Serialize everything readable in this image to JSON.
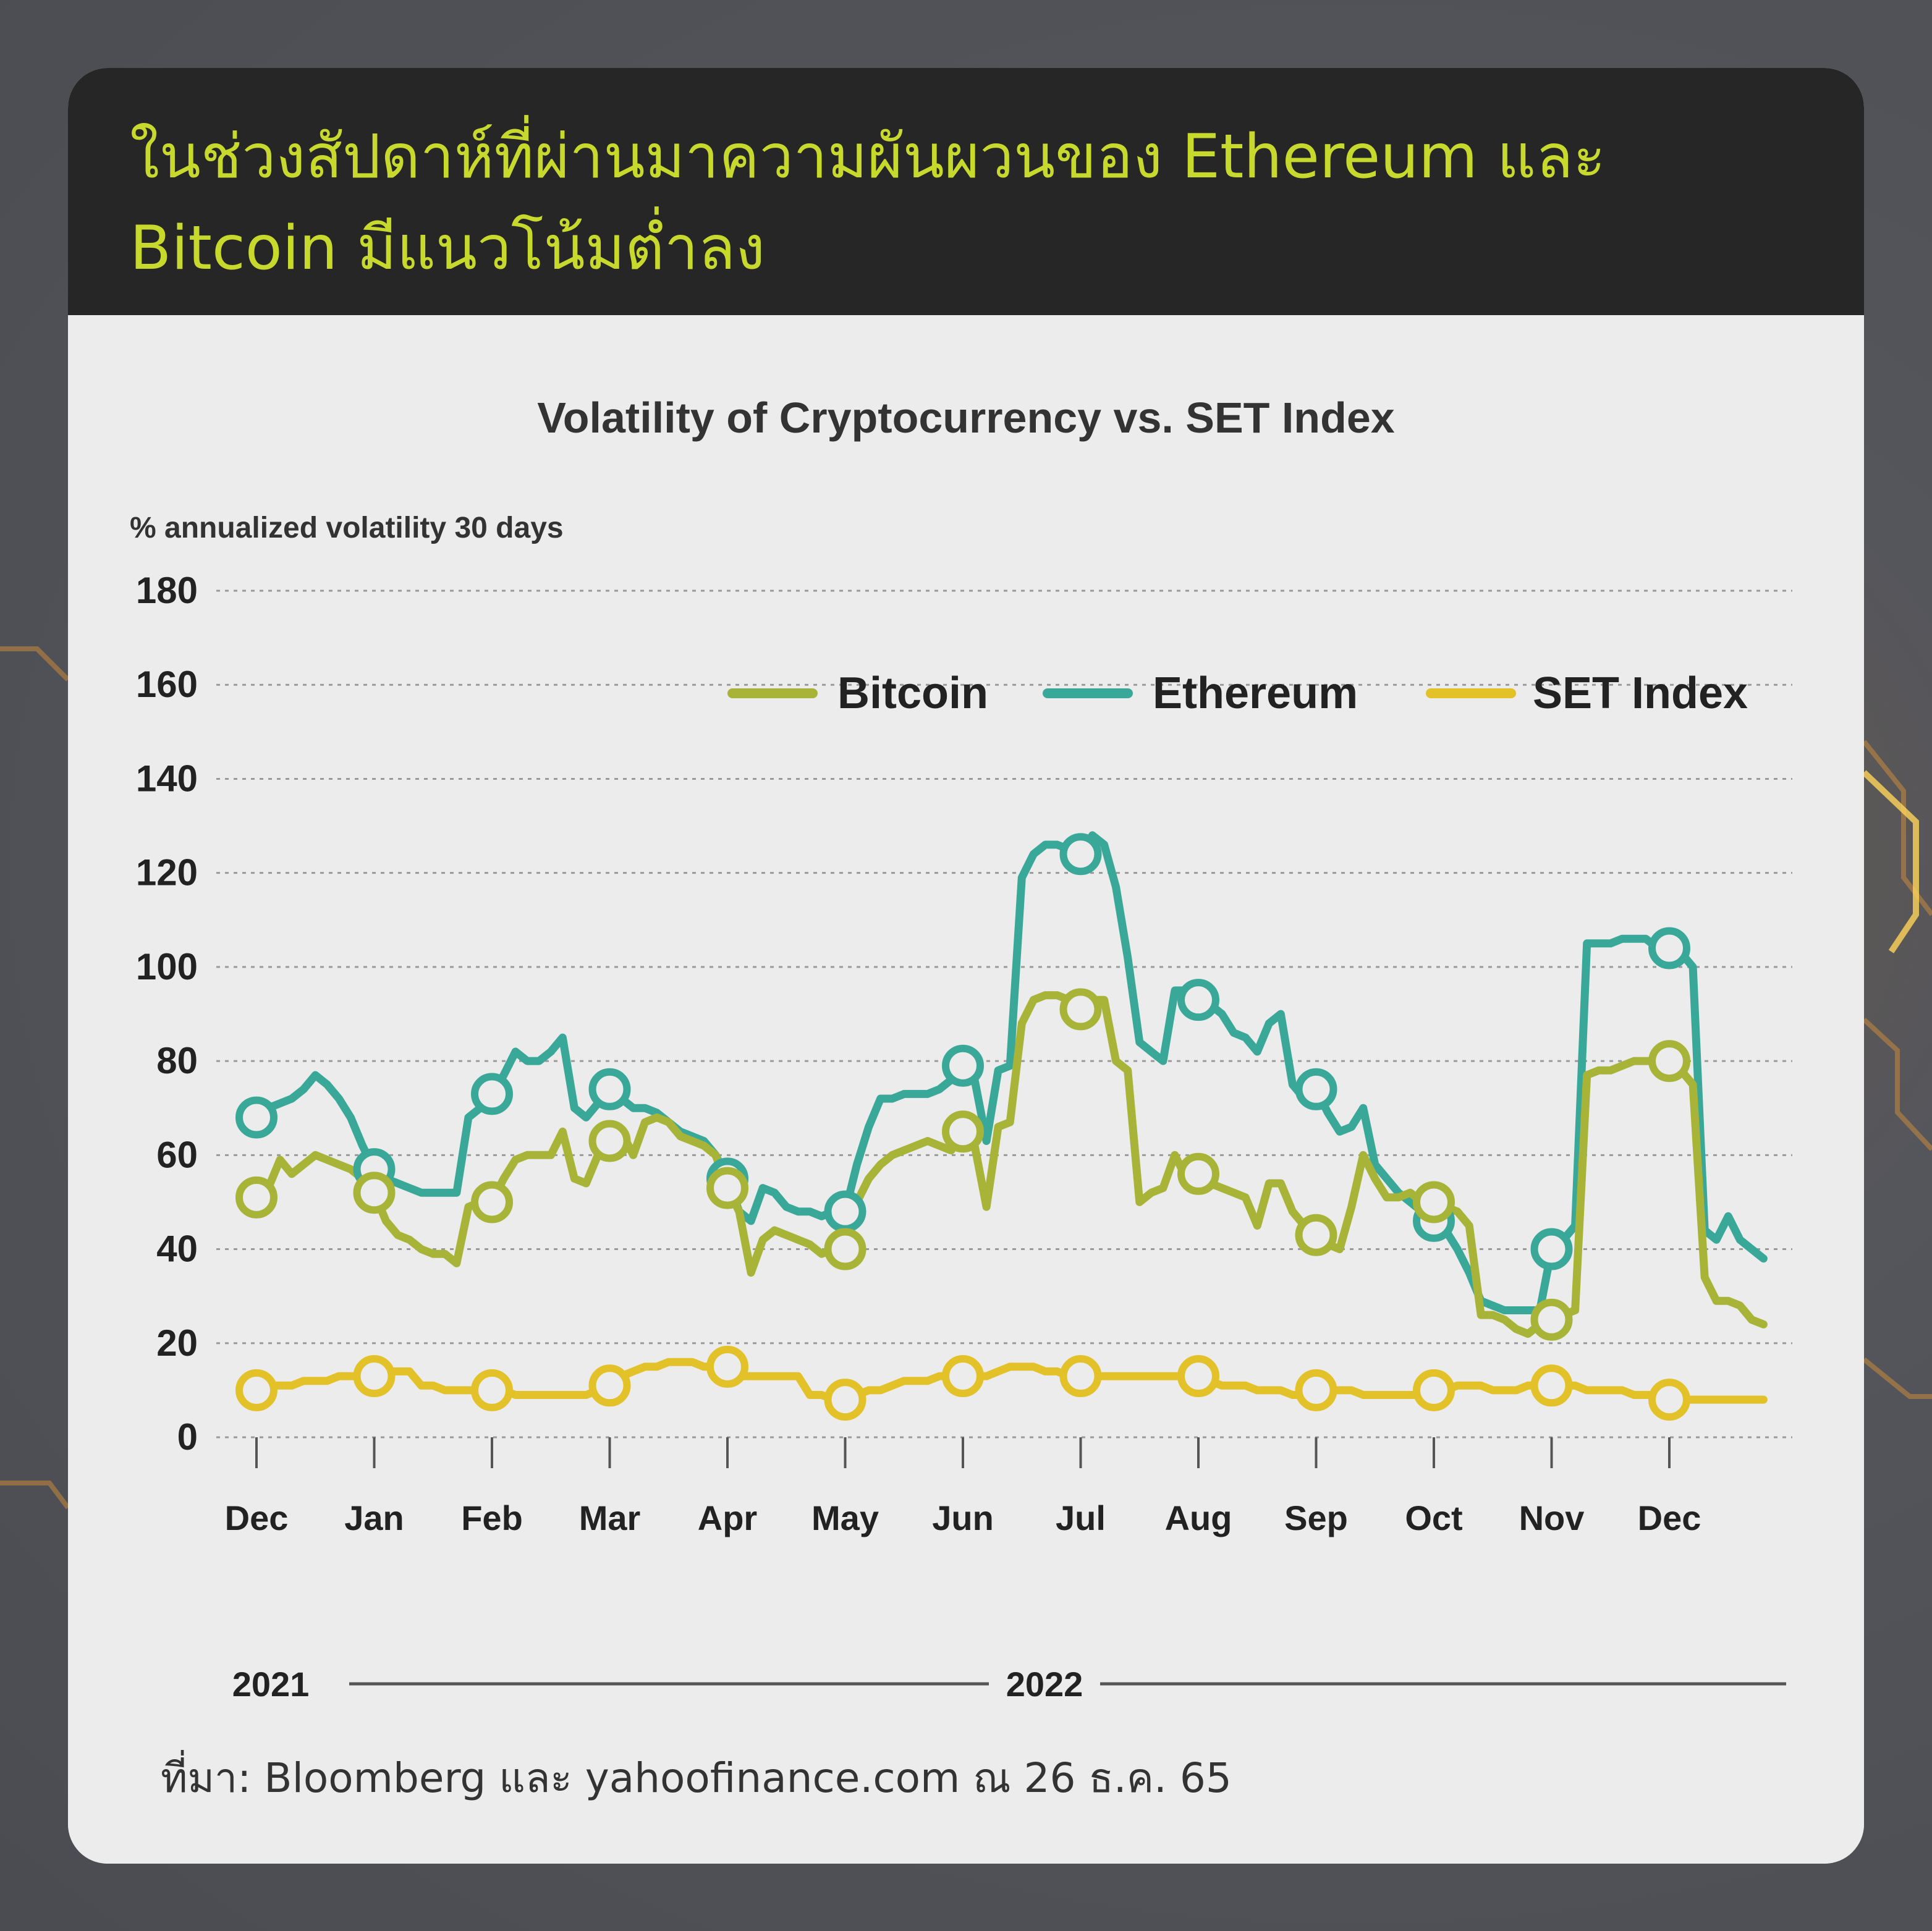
{
  "header": {
    "title": "ในช่วงสัปดาห์ที่ผ่านมาความผันผวนของ Ethereum และ Bitcoin มีแนวโน้มต่ำลง"
  },
  "source": "ที่มา: Bloomberg และ yahoofinance.com ณ 26 ธ.ค. 65",
  "colors": {
    "bitcoin": "#a8b437",
    "ethereum": "#3aa899",
    "set_index": "#e2c228",
    "title_text": "#c8d92e",
    "header_bg": "#262626"
  },
  "chart_data": {
    "type": "line",
    "title": "Volatility of Cryptocurrency  vs. SET Index",
    "ylabel": "% annualized volatility 30 days",
    "ylim": [
      0,
      180
    ],
    "yticks": [
      "180",
      "160",
      "140",
      "120",
      "100",
      "80",
      "60",
      "40",
      "20",
      "0"
    ],
    "x_tick_labels": [
      "Dec",
      "Jan",
      "Feb",
      "Mar",
      "Apr",
      "May",
      "Jun",
      "Jul",
      "Aug",
      "Sep",
      "Oct",
      "Nov",
      "Dec"
    ],
    "year_labels": [
      "2021",
      "2022"
    ],
    "legend": [
      "Bitcoin",
      "Ethereum",
      "SET Index"
    ],
    "legend_position": "top-right",
    "grid": "horizontal dotted",
    "x": [
      0,
      0.1,
      0.2,
      0.3,
      0.4,
      0.5,
      0.6,
      0.7,
      0.8,
      0.9,
      1.0,
      1.1,
      1.2,
      1.3,
      1.4,
      1.5,
      1.6,
      1.7,
      1.8,
      1.9,
      2.0,
      2.1,
      2.2,
      2.3,
      2.4,
      2.5,
      2.6,
      2.7,
      2.8,
      2.9,
      3.0,
      3.1,
      3.2,
      3.3,
      3.4,
      3.5,
      3.6,
      3.7,
      3.8,
      3.9,
      4.0,
      4.1,
      4.2,
      4.3,
      4.4,
      4.5,
      4.6,
      4.7,
      4.8,
      4.9,
      5.0,
      5.1,
      5.2,
      5.3,
      5.4,
      5.5,
      5.6,
      5.7,
      5.8,
      5.9,
      6.0,
      6.1,
      6.2,
      6.3,
      6.4,
      6.5,
      6.6,
      6.7,
      6.8,
      6.9,
      7.0,
      7.1,
      7.2,
      7.3,
      7.4,
      7.5,
      7.6,
      7.7,
      7.8,
      7.9,
      8.0,
      8.1,
      8.2,
      8.3,
      8.4,
      8.5,
      8.6,
      8.7,
      8.8,
      8.9,
      9.0,
      9.1,
      9.2,
      9.3,
      9.4,
      9.5,
      9.6,
      9.7,
      9.8,
      9.9,
      10.0,
      10.1,
      10.2,
      10.3,
      10.4,
      10.5,
      10.6,
      10.7,
      10.8,
      10.9,
      11.0,
      11.1,
      11.2,
      11.3,
      11.4,
      11.5,
      11.6,
      11.7,
      11.8,
      11.9,
      12.0,
      12.1,
      12.2,
      12.3,
      12.4,
      12.5,
      12.6,
      12.7,
      12.8
    ],
    "series": [
      {
        "name": "Bitcoin",
        "values": [
          51,
          53,
          59,
          56,
          58,
          60,
          59,
          58,
          57,
          55,
          52,
          46,
          43,
          42,
          40,
          39,
          39,
          37,
          49,
          50,
          50,
          55,
          59,
          60,
          60,
          60,
          65,
          55,
          54,
          60,
          63,
          65,
          60,
          67,
          68,
          67,
          64,
          63,
          62,
          60,
          53,
          48,
          35,
          42,
          44,
          43,
          42,
          41,
          39,
          40,
          40,
          50,
          55,
          58,
          60,
          61,
          62,
          63,
          62,
          61,
          65,
          62,
          49,
          66,
          67,
          88,
          93,
          94,
          94,
          93,
          91,
          93,
          93,
          80,
          78,
          50,
          52,
          53,
          60,
          55,
          56,
          54,
          53,
          52,
          51,
          45,
          54,
          54,
          48,
          45,
          43,
          41,
          40,
          49,
          60,
          55,
          51,
          51,
          52,
          50,
          50,
          49,
          48,
          45,
          26,
          26,
          25,
          23,
          22,
          24,
          25,
          26,
          27,
          77,
          78,
          78,
          79,
          80,
          80,
          80,
          80,
          78,
          75,
          34,
          29,
          29,
          28,
          25,
          24
        ],
        "marker_x": [
          0,
          1,
          2,
          3,
          4,
          5,
          6,
          7,
          8,
          9,
          10,
          11,
          12
        ]
      },
      {
        "name": "Ethereum",
        "values": [
          68,
          70,
          71,
          72,
          74,
          77,
          75,
          72,
          68,
          62,
          57,
          55,
          54,
          53,
          52,
          52,
          52,
          52,
          68,
          70,
          73,
          77,
          82,
          80,
          80,
          82,
          85,
          70,
          68,
          71,
          74,
          72,
          70,
          70,
          69,
          67,
          65,
          64,
          63,
          60,
          55,
          48,
          46,
          53,
          52,
          49,
          48,
          48,
          47,
          48,
          48,
          58,
          66,
          72,
          72,
          73,
          73,
          73,
          74,
          76,
          79,
          76,
          63,
          78,
          79,
          119,
          124,
          126,
          126,
          125,
          124,
          128,
          126,
          117,
          102,
          84,
          82,
          80,
          95,
          95,
          93,
          92,
          90,
          86,
          85,
          82,
          88,
          90,
          75,
          72,
          74,
          69,
          65,
          66,
          70,
          58,
          55,
          52,
          50,
          48,
          46,
          44,
          40,
          35,
          29,
          28,
          27,
          27,
          27,
          27,
          40,
          42,
          45,
          105,
          105,
          105,
          106,
          106,
          106,
          104,
          104,
          103,
          100,
          44,
          42,
          47,
          42,
          40,
          38
        ],
        "marker_x": [
          0,
          1,
          2,
          3,
          4,
          5,
          6,
          7,
          8,
          9,
          10,
          11,
          12
        ]
      },
      {
        "name": "SET Index",
        "values": [
          10,
          11,
          11,
          11,
          12,
          12,
          12,
          13,
          13,
          13,
          13,
          14,
          14,
          14,
          11,
          11,
          10,
          10,
          10,
          10,
          10,
          10,
          9,
          9,
          9,
          9,
          9,
          9,
          9,
          10,
          11,
          13,
          14,
          15,
          15,
          16,
          16,
          16,
          15,
          15,
          15,
          13,
          13,
          13,
          13,
          13,
          13,
          9,
          9,
          8,
          8,
          9,
          10,
          10,
          11,
          12,
          12,
          12,
          13,
          13,
          13,
          13,
          13,
          14,
          15,
          15,
          15,
          14,
          14,
          13,
          13,
          13,
          13,
          13,
          13,
          13,
          13,
          13,
          13,
          13,
          13,
          12,
          11,
          11,
          11,
          10,
          10,
          10,
          9,
          9,
          10,
          10,
          10,
          10,
          9,
          9,
          9,
          9,
          9,
          9,
          10,
          10,
          11,
          11,
          11,
          10,
          10,
          10,
          11,
          11,
          11,
          11,
          11,
          10,
          10,
          10,
          10,
          9,
          9,
          9,
          8,
          8,
          8,
          8,
          8,
          8,
          8,
          8,
          8
        ],
        "marker_x": [
          0,
          1,
          2,
          3,
          4,
          5,
          6,
          7,
          8,
          9,
          10,
          11,
          12
        ]
      }
    ]
  }
}
